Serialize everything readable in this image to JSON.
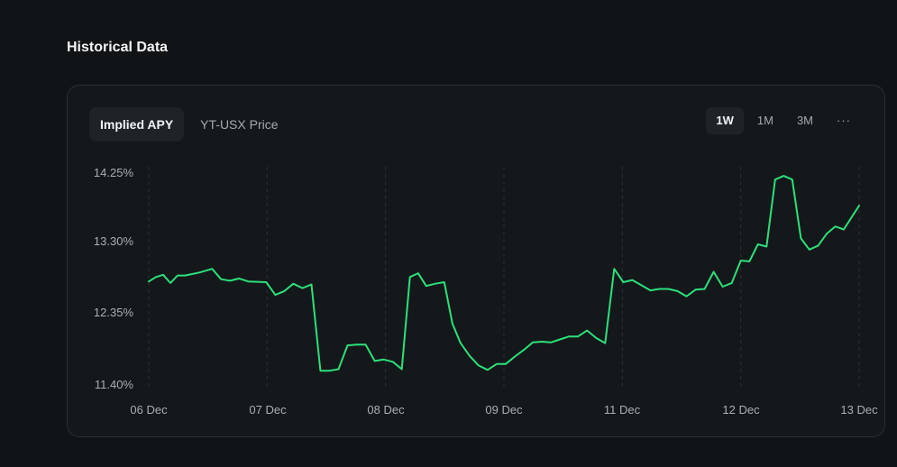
{
  "section": {
    "title": "Historical Data"
  },
  "tabs": [
    {
      "label": "Implied APY",
      "active": true
    },
    {
      "label": "YT-USX Price",
      "active": false
    }
  ],
  "ranges": [
    {
      "label": "1W",
      "active": true
    },
    {
      "label": "1M",
      "active": false
    },
    {
      "label": "3M",
      "active": false
    }
  ],
  "more_label": "···",
  "colors": {
    "line": "#2de07a",
    "grid": "#2a3034"
  },
  "chart_data": {
    "type": "line",
    "title": "",
    "xlabel": "",
    "ylabel": "",
    "x_ticks": [
      "06 Dec",
      "07 Dec",
      "08 Dec",
      "09 Dec",
      "11 Dec",
      "12 Dec",
      "13 Dec"
    ],
    "y_ticks": [
      "14.25%",
      "13.30%",
      "12.35%",
      "11.40%"
    ],
    "ylim": [
      11.4,
      14.25
    ],
    "xlim": [
      0,
      6
    ],
    "grid": "vertical dashed",
    "legend": "none",
    "series": [
      {
        "values": [
          [
            0.0,
            12.78
          ],
          [
            0.061,
            12.84
          ],
          [
            0.122,
            12.87
          ],
          [
            0.183,
            12.76
          ],
          [
            0.244,
            12.86
          ],
          [
            0.305,
            12.86
          ],
          [
            0.366,
            12.88
          ],
          [
            0.427,
            12.9
          ],
          [
            0.535,
            12.95
          ],
          [
            0.611,
            12.81
          ],
          [
            0.687,
            12.79
          ],
          [
            0.763,
            12.82
          ],
          [
            0.84,
            12.78
          ],
          [
            0.992,
            12.77
          ],
          [
            1.069,
            12.6
          ],
          [
            1.145,
            12.65
          ],
          [
            1.221,
            12.75
          ],
          [
            1.298,
            12.69
          ],
          [
            1.374,
            12.74
          ],
          [
            1.45,
            11.58
          ],
          [
            1.527,
            11.58
          ],
          [
            1.603,
            11.6
          ],
          [
            1.679,
            11.92
          ],
          [
            1.756,
            11.93
          ],
          [
            1.832,
            11.93
          ],
          [
            1.908,
            11.71
          ],
          [
            1.985,
            11.73
          ],
          [
            2.061,
            11.7
          ],
          [
            2.137,
            11.6
          ],
          [
            2.206,
            12.84
          ],
          [
            2.275,
            12.89
          ],
          [
            2.344,
            12.72
          ],
          [
            2.42,
            12.75
          ],
          [
            2.496,
            12.77
          ],
          [
            2.565,
            12.21
          ],
          [
            2.634,
            11.95
          ],
          [
            2.71,
            11.78
          ],
          [
            2.786,
            11.65
          ],
          [
            2.862,
            11.59
          ],
          [
            2.939,
            11.67
          ],
          [
            3.015,
            11.67
          ],
          [
            3.092,
            11.77
          ],
          [
            3.168,
            11.86
          ],
          [
            3.244,
            11.96
          ],
          [
            3.321,
            11.97
          ],
          [
            3.397,
            11.96
          ],
          [
            3.473,
            12.0
          ],
          [
            3.55,
            12.04
          ],
          [
            3.626,
            12.04
          ],
          [
            3.702,
            12.12
          ],
          [
            3.779,
            12.02
          ],
          [
            3.855,
            11.95
          ],
          [
            3.931,
            12.95
          ],
          [
            4.008,
            12.77
          ],
          [
            4.084,
            12.8
          ],
          [
            4.16,
            12.73
          ],
          [
            4.237,
            12.66
          ],
          [
            4.313,
            12.68
          ],
          [
            4.389,
            12.68
          ],
          [
            4.466,
            12.65
          ],
          [
            4.542,
            12.58
          ],
          [
            4.618,
            12.67
          ],
          [
            4.695,
            12.68
          ],
          [
            4.771,
            12.91
          ],
          [
            4.847,
            12.71
          ],
          [
            4.924,
            12.76
          ],
          [
            5.0,
            13.06
          ],
          [
            5.073,
            13.05
          ],
          [
            5.145,
            13.28
          ],
          [
            5.218,
            13.25
          ],
          [
            5.29,
            14.15
          ],
          [
            5.363,
            14.2
          ],
          [
            5.435,
            14.15
          ],
          [
            5.508,
            13.36
          ],
          [
            5.58,
            13.21
          ],
          [
            5.653,
            13.26
          ],
          [
            5.725,
            13.42
          ],
          [
            5.798,
            13.52
          ],
          [
            5.87,
            13.48
          ],
          [
            6.0,
            13.8
          ]
        ]
      }
    ]
  }
}
